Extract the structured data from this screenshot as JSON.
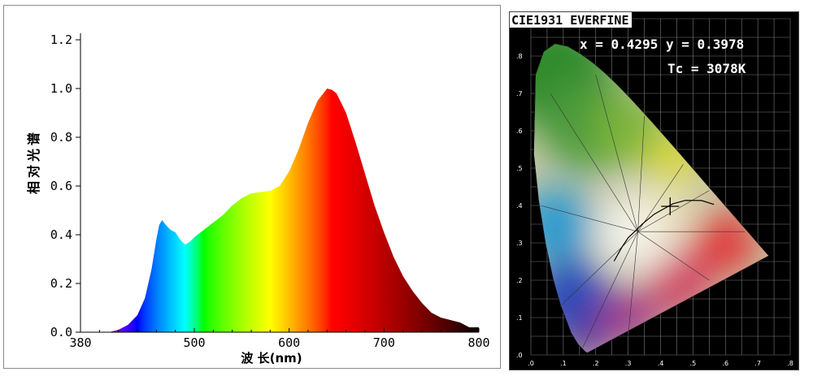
{
  "chart_data": [
    {
      "type": "area",
      "title": "",
      "xlabel": "波 长(nm)",
      "ylabel": "相对光谱",
      "xlim": [
        380,
        800
      ],
      "ylim": [
        0,
        1.2
      ],
      "xticks": [
        380,
        500,
        600,
        700,
        800
      ],
      "yticks": [
        "0.0",
        "0.2",
        "0.4",
        "0.6",
        "0.8",
        "1.0",
        "1.2"
      ],
      "fill": "wavelength-colored gradient",
      "series": [
        {
          "x": [
            400,
            410,
            420,
            430,
            440,
            448,
            455,
            460,
            463,
            466,
            470,
            475,
            480,
            485,
            490,
            495,
            500,
            510,
            520,
            530,
            540,
            550,
            560,
            570,
            580,
            590,
            600,
            610,
            620,
            630,
            640,
            645,
            650,
            660,
            670,
            680,
            690,
            700,
            710,
            720,
            730,
            740,
            750,
            760,
            770,
            780,
            790,
            800
          ],
          "values": [
            0.0,
            0.0,
            0.01,
            0.03,
            0.07,
            0.14,
            0.26,
            0.38,
            0.44,
            0.46,
            0.44,
            0.42,
            0.41,
            0.38,
            0.36,
            0.37,
            0.39,
            0.42,
            0.45,
            0.48,
            0.52,
            0.55,
            0.57,
            0.575,
            0.58,
            0.6,
            0.66,
            0.75,
            0.86,
            0.95,
            1.0,
            0.995,
            0.98,
            0.9,
            0.78,
            0.65,
            0.52,
            0.41,
            0.31,
            0.23,
            0.17,
            0.12,
            0.08,
            0.06,
            0.05,
            0.04,
            0.02,
            0.02
          ]
        }
      ]
    },
    {
      "type": "scatter",
      "title": "CIE1931 EVERFINE",
      "xlim": [
        0,
        0.8
      ],
      "ylim": [
        0,
        0.9
      ],
      "xticks": [
        ".0",
        ".1",
        ".2",
        ".3",
        ".4",
        ".5",
        ".6",
        ".7",
        ".8"
      ],
      "yticks": [
        ".0",
        ".1",
        ".2",
        ".3",
        ".4",
        ".5",
        ".6",
        ".7",
        ".8"
      ],
      "point": {
        "x": 0.4295,
        "y": 0.3978
      },
      "readout_xy": "x = 0.4295 y = 0.3978",
      "readout_tc": "Tc = 3078K"
    }
  ]
}
